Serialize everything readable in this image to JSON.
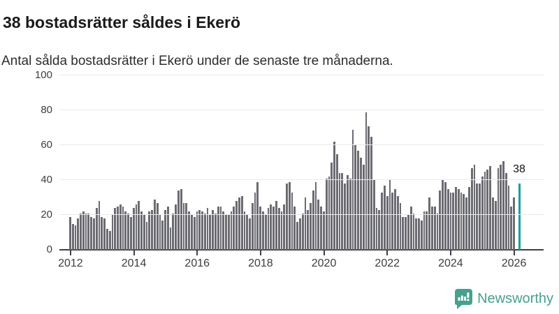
{
  "header": {
    "title": "38 bostadsrätter såldes i Ekerö",
    "subtitle": "Antal sålda bostadsrätter i Ekerö under de senaste tre månaderna."
  },
  "chart_data": {
    "type": "bar",
    "title": "38 bostadsrätter såldes i Ekerö",
    "subtitle": "Antal sålda bostadsrätter i Ekerö under de senaste tre månaderna.",
    "xlabel": "",
    "ylabel": "",
    "x_interval": "month",
    "x_start_month": "2012-01",
    "x_end_month": "2026-03",
    "values": [
      19,
      15,
      14,
      18,
      21,
      22,
      21,
      21,
      19,
      18,
      24,
      28,
      19,
      18,
      12,
      11,
      20,
      24,
      25,
      26,
      25,
      22,
      21,
      19,
      24,
      26,
      28,
      22,
      20,
      16,
      22,
      23,
      29,
      27,
      20,
      17,
      23,
      25,
      13,
      21,
      26,
      34,
      35,
      27,
      27,
      22,
      20,
      19,
      22,
      23,
      22,
      21,
      24,
      20,
      23,
      21,
      25,
      25,
      22,
      20,
      20,
      22,
      25,
      28,
      30,
      31,
      22,
      20,
      18,
      27,
      33,
      39,
      25,
      22,
      20,
      24,
      26,
      25,
      28,
      24,
      22,
      26,
      38,
      39,
      33,
      25,
      16,
      18,
      21,
      30,
      23,
      27,
      34,
      39,
      29,
      25,
      22,
      41,
      42,
      50,
      62,
      55,
      44,
      44,
      38,
      43,
      41,
      69,
      60,
      57,
      53,
      49,
      79,
      71,
      65,
      40,
      24,
      23,
      33,
      37,
      31,
      40,
      33,
      35,
      31,
      27,
      19,
      19,
      20,
      25,
      21,
      18,
      18,
      17,
      22,
      22,
      30,
      25,
      25,
      21,
      34,
      40,
      39,
      35,
      33,
      33,
      36,
      35,
      33,
      32,
      30,
      36,
      47,
      49,
      38,
      38,
      42,
      45,
      46,
      48,
      30,
      28,
      47,
      49,
      51,
      44,
      37,
      25,
      30,
      null,
      38
    ],
    "highlight": {
      "index": 170,
      "value": 38,
      "label": "38"
    },
    "ylim": [
      0,
      100
    ],
    "yticks": [
      0,
      20,
      40,
      60,
      80,
      100
    ],
    "xtick_years": [
      "2012",
      "2014",
      "2016",
      "2018",
      "2020",
      "2022",
      "2024",
      "2026"
    ],
    "grid": "horizontal",
    "legend": "none",
    "colors": {
      "bar": "#6b6b72",
      "highlight": "#12a19e",
      "gridline": "#e9e9e9",
      "axis": "#3f3f44",
      "tick_text": "#3d3d3d"
    }
  },
  "footer": {
    "logo_text": "Newsworthy",
    "logo_color": "#47a18f"
  }
}
